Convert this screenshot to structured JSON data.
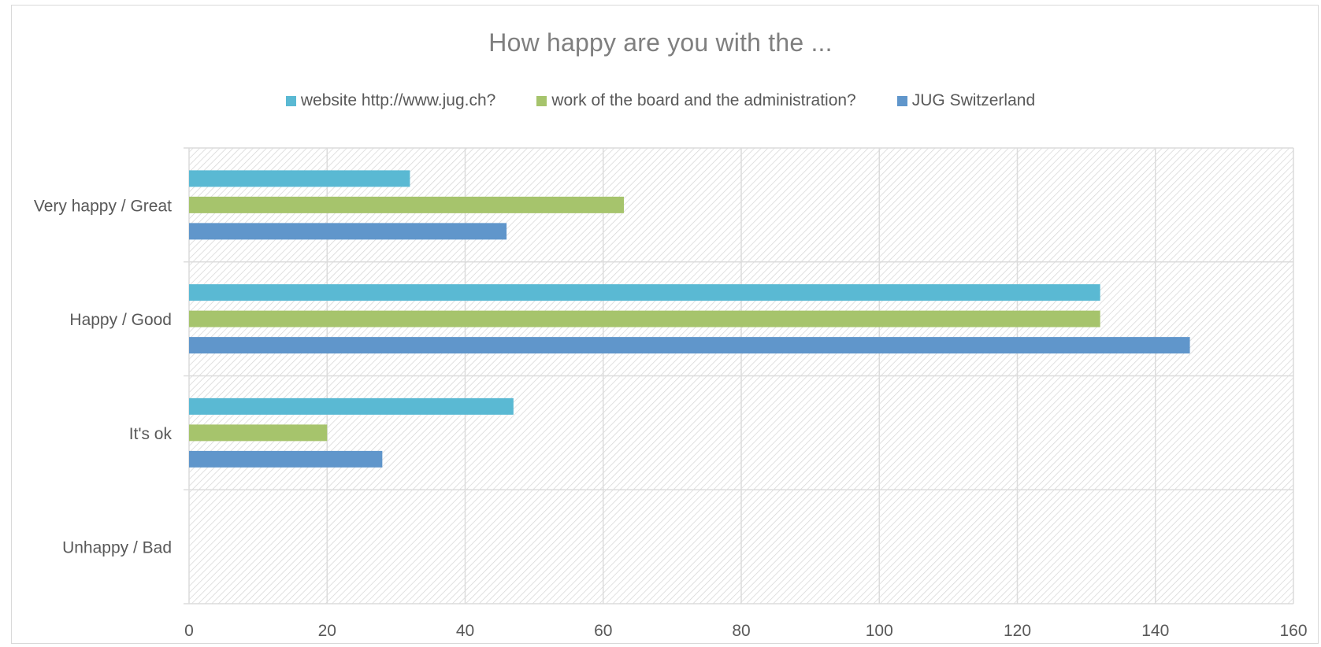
{
  "chart_data": {
    "type": "bar",
    "orientation": "horizontal",
    "title": "How happy are you with the ...",
    "categories": [
      "Very happy / Great",
      "Happy / Good",
      "It's ok",
      "Unhappy / Bad"
    ],
    "series": [
      {
        "name": "website http://www.jug.ch?",
        "color": "#5ab9d3",
        "values": [
          32,
          132,
          47,
          0
        ]
      },
      {
        "name": "work of the board and the administration?",
        "color": "#a6c46c",
        "values": [
          63,
          132,
          20,
          0
        ]
      },
      {
        "name": "JUG Switzerland",
        "color": "#6096cb",
        "values": [
          46,
          145,
          28,
          0
        ]
      }
    ],
    "xlim": [
      0,
      160
    ],
    "xticks": [
      "0",
      "20",
      "40",
      "60",
      "80",
      "100",
      "120",
      "140",
      "160"
    ],
    "grid": true,
    "plot_background": "hatched",
    "legend_position": "top"
  }
}
